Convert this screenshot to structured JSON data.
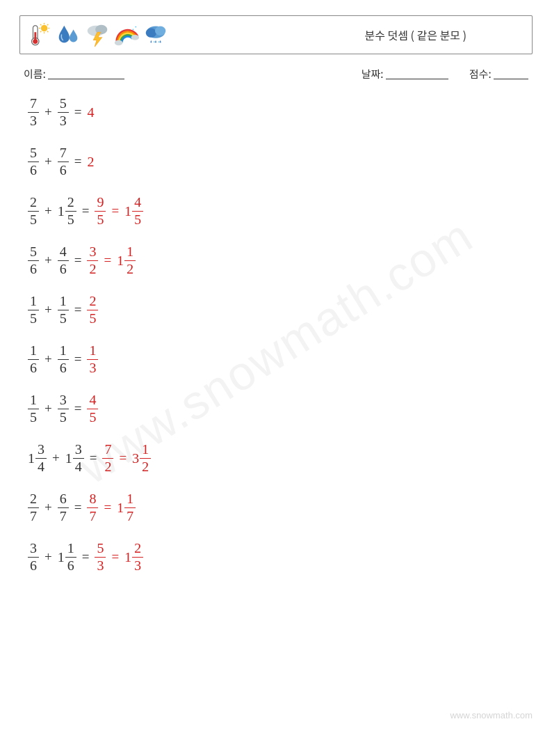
{
  "header": {
    "title": "분수 덧셈 ( 같은 분모 )",
    "icons": [
      "thermometer",
      "raindrops",
      "lightning",
      "rainbow",
      "raincloud"
    ]
  },
  "info": {
    "name_label": "이름:",
    "name_underline_width": 110,
    "date_label": "날짜:",
    "date_underline_width": 90,
    "score_label": "점수:",
    "score_underline_width": 50
  },
  "colors": {
    "text": "#333333",
    "answer": "#d42020",
    "border": "#888888",
    "background": "#ffffff",
    "watermark": "rgba(120,120,120,0.09)",
    "footer": "rgba(100,100,100,0.28)"
  },
  "typography": {
    "title_fontsize": 16,
    "info_fontsize": 15,
    "equation_fontsize": 20,
    "equation_font": "Cambria Math / Times New Roman",
    "body_font": "Malgun Gothic / Noto Sans KR"
  },
  "problems": [
    {
      "left": [
        {
          "type": "frac",
          "num": "7",
          "den": "3"
        },
        {
          "type": "op",
          "val": "+"
        },
        {
          "type": "frac",
          "num": "5",
          "den": "3"
        },
        {
          "type": "op",
          "val": "="
        }
      ],
      "answer": [
        {
          "type": "int",
          "val": "4"
        }
      ]
    },
    {
      "left": [
        {
          "type": "frac",
          "num": "5",
          "den": "6"
        },
        {
          "type": "op",
          "val": "+"
        },
        {
          "type": "frac",
          "num": "7",
          "den": "6"
        },
        {
          "type": "op",
          "val": "="
        }
      ],
      "answer": [
        {
          "type": "int",
          "val": "2"
        }
      ]
    },
    {
      "left": [
        {
          "type": "frac",
          "num": "2",
          "den": "5"
        },
        {
          "type": "op",
          "val": "+"
        },
        {
          "type": "mixed",
          "whole": "1",
          "num": "2",
          "den": "5"
        },
        {
          "type": "op",
          "val": "="
        }
      ],
      "answer": [
        {
          "type": "frac",
          "num": "9",
          "den": "5"
        },
        {
          "type": "op",
          "val": "="
        },
        {
          "type": "mixed",
          "whole": "1",
          "num": "4",
          "den": "5"
        }
      ]
    },
    {
      "left": [
        {
          "type": "frac",
          "num": "5",
          "den": "6"
        },
        {
          "type": "op",
          "val": "+"
        },
        {
          "type": "frac",
          "num": "4",
          "den": "6"
        },
        {
          "type": "op",
          "val": "="
        }
      ],
      "answer": [
        {
          "type": "frac",
          "num": "3",
          "den": "2"
        },
        {
          "type": "op",
          "val": "="
        },
        {
          "type": "mixed",
          "whole": "1",
          "num": "1",
          "den": "2"
        }
      ]
    },
    {
      "left": [
        {
          "type": "frac",
          "num": "1",
          "den": "5"
        },
        {
          "type": "op",
          "val": "+"
        },
        {
          "type": "frac",
          "num": "1",
          "den": "5"
        },
        {
          "type": "op",
          "val": "="
        }
      ],
      "answer": [
        {
          "type": "frac",
          "num": "2",
          "den": "5"
        }
      ]
    },
    {
      "left": [
        {
          "type": "frac",
          "num": "1",
          "den": "6"
        },
        {
          "type": "op",
          "val": "+"
        },
        {
          "type": "frac",
          "num": "1",
          "den": "6"
        },
        {
          "type": "op",
          "val": "="
        }
      ],
      "answer": [
        {
          "type": "frac",
          "num": "1",
          "den": "3"
        }
      ]
    },
    {
      "left": [
        {
          "type": "frac",
          "num": "1",
          "den": "5"
        },
        {
          "type": "op",
          "val": "+"
        },
        {
          "type": "frac",
          "num": "3",
          "den": "5"
        },
        {
          "type": "op",
          "val": "="
        }
      ],
      "answer": [
        {
          "type": "frac",
          "num": "4",
          "den": "5"
        }
      ]
    },
    {
      "left": [
        {
          "type": "mixed",
          "whole": "1",
          "num": "3",
          "den": "4"
        },
        {
          "type": "op",
          "val": "+"
        },
        {
          "type": "mixed",
          "whole": "1",
          "num": "3",
          "den": "4"
        },
        {
          "type": "op",
          "val": "="
        }
      ],
      "answer": [
        {
          "type": "frac",
          "num": "7",
          "den": "2"
        },
        {
          "type": "op",
          "val": "="
        },
        {
          "type": "mixed",
          "whole": "3",
          "num": "1",
          "den": "2"
        }
      ]
    },
    {
      "left": [
        {
          "type": "frac",
          "num": "2",
          "den": "7"
        },
        {
          "type": "op",
          "val": "+"
        },
        {
          "type": "frac",
          "num": "6",
          "den": "7"
        },
        {
          "type": "op",
          "val": "="
        }
      ],
      "answer": [
        {
          "type": "frac",
          "num": "8",
          "den": "7"
        },
        {
          "type": "op",
          "val": "="
        },
        {
          "type": "mixed",
          "whole": "1",
          "num": "1",
          "den": "7"
        }
      ]
    },
    {
      "left": [
        {
          "type": "frac",
          "num": "3",
          "den": "6"
        },
        {
          "type": "op",
          "val": "+"
        },
        {
          "type": "mixed",
          "whole": "1",
          "num": "1",
          "den": "6"
        },
        {
          "type": "op",
          "val": "="
        }
      ],
      "answer": [
        {
          "type": "frac",
          "num": "5",
          "den": "3"
        },
        {
          "type": "op",
          "val": "="
        },
        {
          "type": "mixed",
          "whole": "1",
          "num": "2",
          "den": "3"
        }
      ]
    }
  ],
  "watermark": "www.snowmath.com",
  "footer": "www.snowmath.com"
}
